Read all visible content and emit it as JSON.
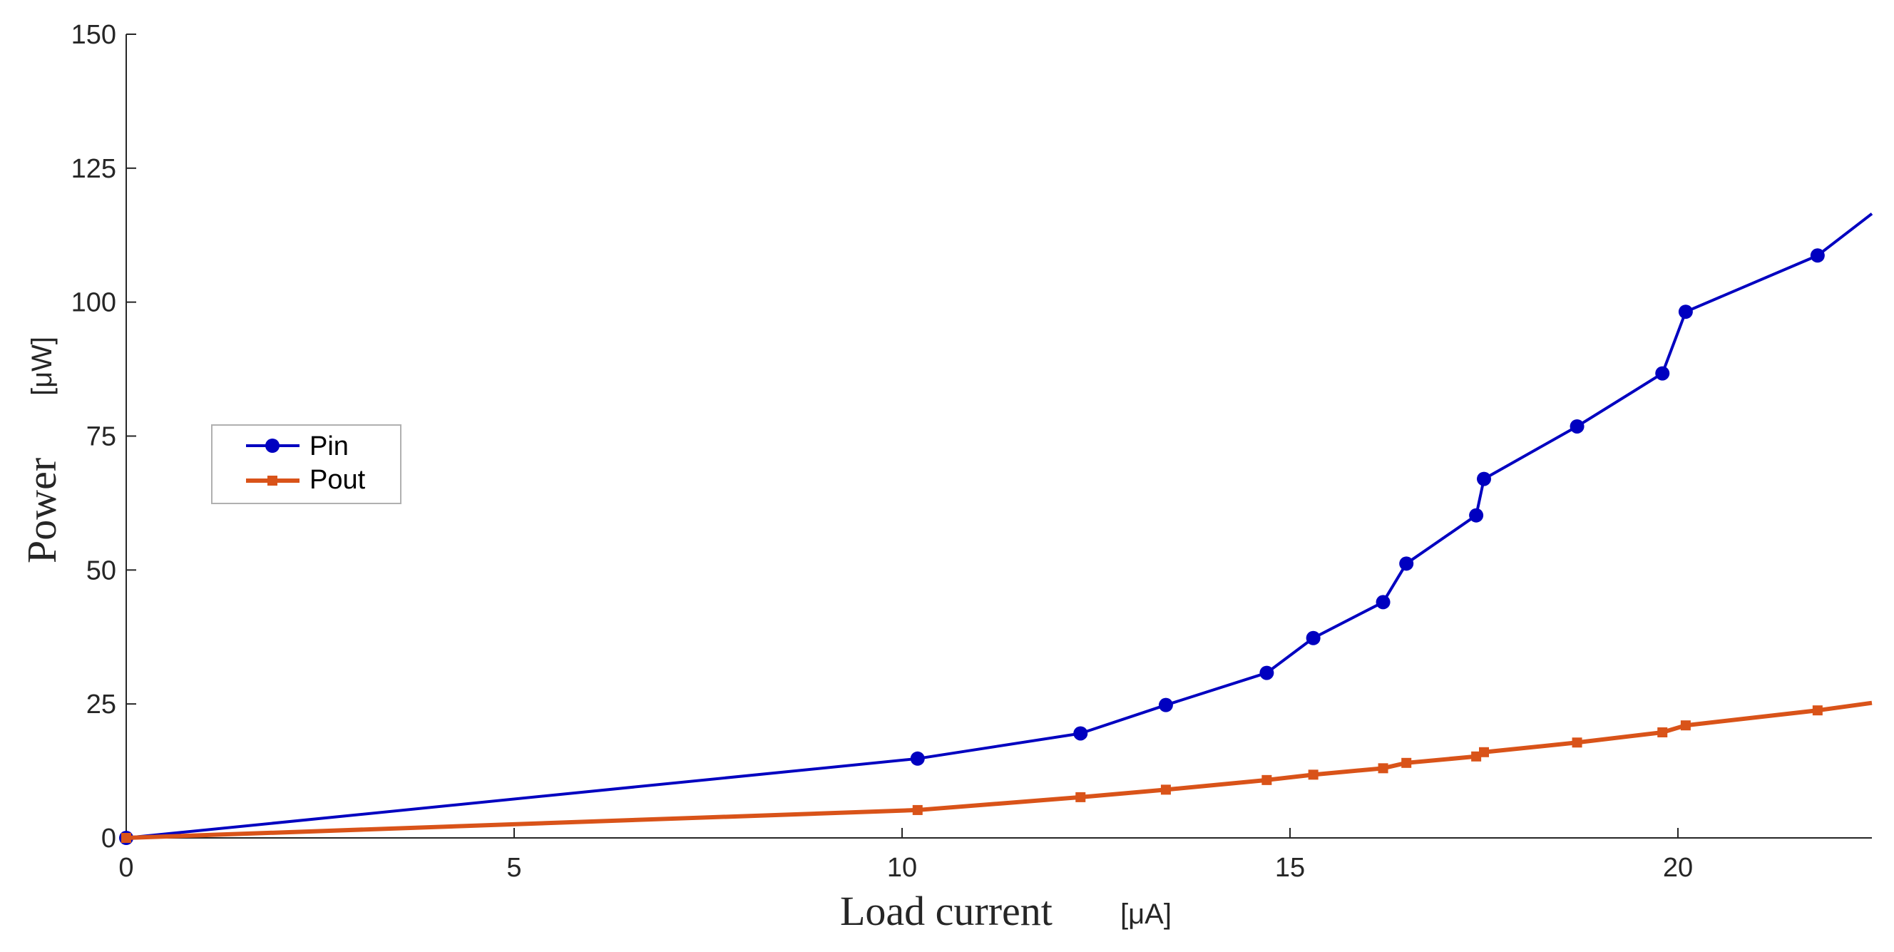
{
  "chart_data": {
    "type": "line",
    "xlabel": "Load current",
    "xlabel_unit": "[μA]",
    "ylabel": "Power",
    "ylabel_unit": "[μW]",
    "xlim": [
      0,
      22.5
    ],
    "ylim": [
      0,
      150
    ],
    "xticks": [
      0,
      5,
      10,
      15,
      20
    ],
    "yticks": [
      0,
      25,
      50,
      75,
      100,
      125,
      150
    ],
    "grid": false,
    "legend_position": "left",
    "series": [
      {
        "name": "Pin",
        "color": "#0000c0",
        "marker": "circle",
        "x": [
          0,
          10.2,
          12.3,
          13.4,
          14.7,
          15.3,
          16.2,
          16.5,
          17.4,
          17.5,
          18.7,
          19.8,
          20.1,
          21.8,
          22.5
        ],
        "y": [
          0,
          14.8,
          19.5,
          24.8,
          30.8,
          37.3,
          44.0,
          51.2,
          60.2,
          67.0,
          76.8,
          86.7,
          98.2,
          108.7,
          116.5
        ]
      },
      {
        "name": "Pout",
        "color": "#d95319",
        "marker": "square",
        "x": [
          0,
          10.2,
          12.3,
          13.4,
          14.7,
          15.3,
          16.2,
          16.5,
          17.4,
          17.5,
          18.7,
          19.8,
          20.1,
          21.8,
          22.5
        ],
        "y": [
          0,
          5.2,
          7.6,
          9.0,
          10.8,
          11.8,
          13.0,
          14.0,
          15.2,
          16.0,
          17.8,
          19.7,
          21.0,
          23.8,
          25.2
        ]
      }
    ]
  }
}
